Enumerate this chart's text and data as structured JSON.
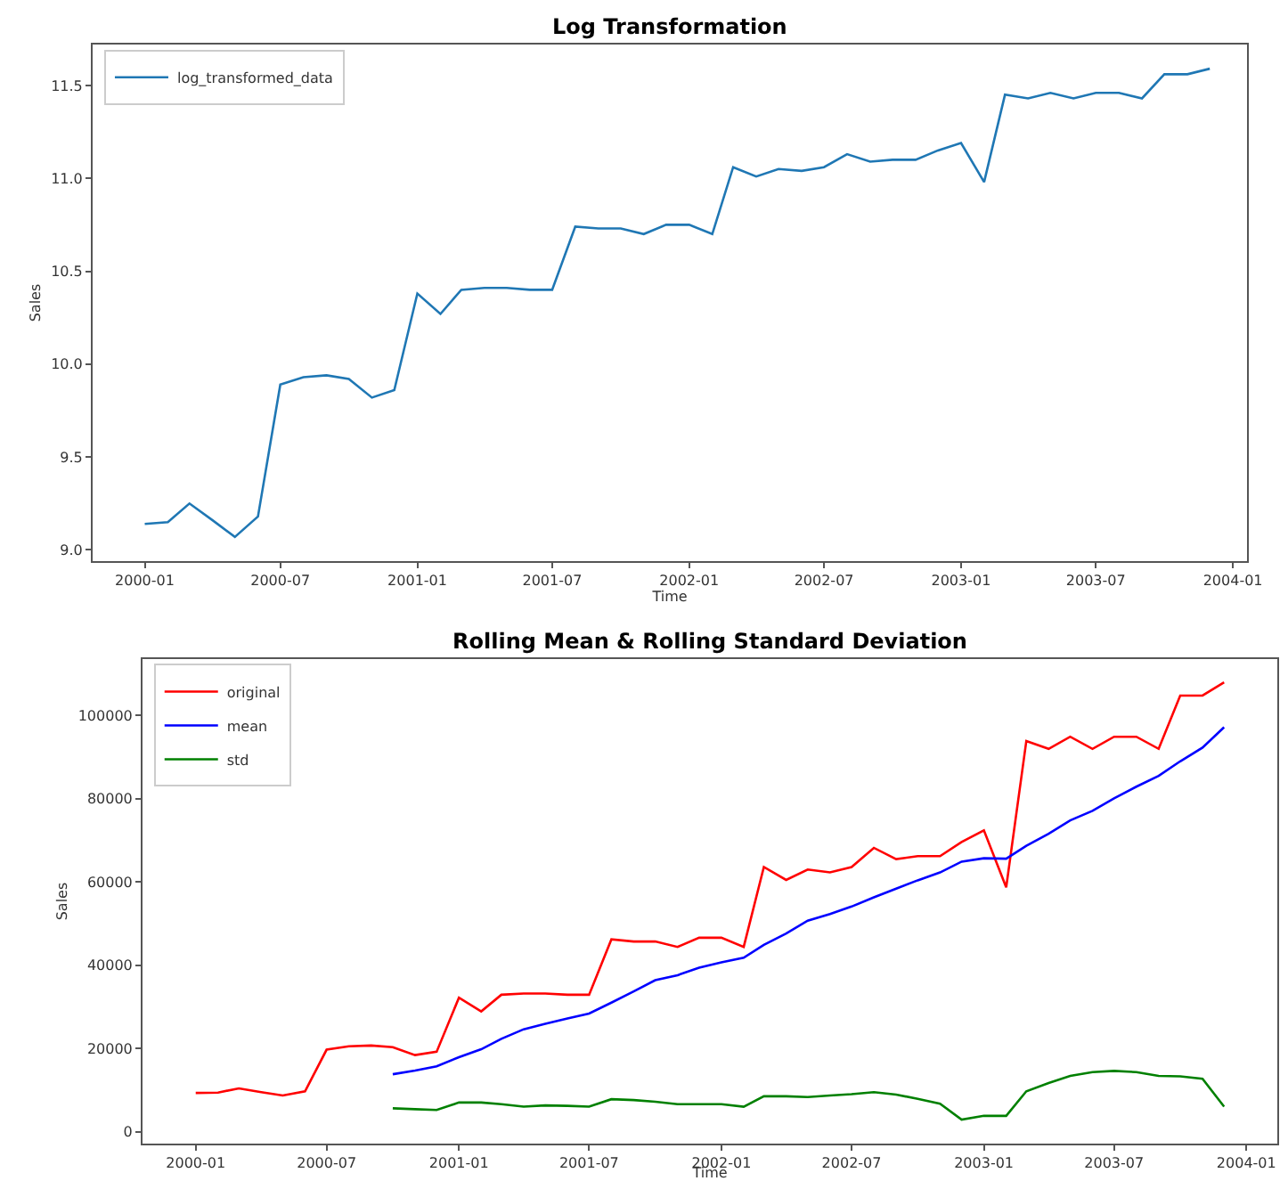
{
  "chart_data": [
    {
      "type": "line",
      "title": "Log Transformation",
      "xlabel": "Time",
      "ylabel": "Sales",
      "x": [
        "2000-01",
        "2000-02",
        "2000-03",
        "2000-04",
        "2000-05",
        "2000-06",
        "2000-07",
        "2000-08",
        "2000-09",
        "2000-10",
        "2000-11",
        "2000-12",
        "2001-01",
        "2001-02",
        "2001-03",
        "2001-04",
        "2001-05",
        "2001-06",
        "2001-07",
        "2001-08",
        "2001-09",
        "2001-10",
        "2001-11",
        "2001-12",
        "2002-01",
        "2002-02",
        "2002-03",
        "2002-04",
        "2002-05",
        "2002-06",
        "2002-07",
        "2002-08",
        "2002-09",
        "2002-10",
        "2002-11",
        "2002-12",
        "2003-01",
        "2003-02",
        "2003-03",
        "2003-04",
        "2003-05",
        "2003-06",
        "2003-07",
        "2003-08",
        "2003-09",
        "2003-10",
        "2003-11",
        "2003-12"
      ],
      "series": [
        {
          "name": "log_transformed_data",
          "color": "#1f77b4",
          "values": [
            9.14,
            9.15,
            9.25,
            9.16,
            9.07,
            9.18,
            9.89,
            9.93,
            9.94,
            9.92,
            9.82,
            9.86,
            10.38,
            10.27,
            10.4,
            10.41,
            10.41,
            10.4,
            10.4,
            10.74,
            10.73,
            10.73,
            10.7,
            10.75,
            10.75,
            10.7,
            11.06,
            11.01,
            11.05,
            11.04,
            11.06,
            11.13,
            11.09,
            11.1,
            11.1,
            11.15,
            11.19,
            10.98,
            11.45,
            11.43,
            11.46,
            11.43,
            11.46,
            11.46,
            11.43,
            11.56,
            11.56,
            11.59
          ]
        }
      ],
      "xlim": [
        "1999-10-23",
        "2004-01-20"
      ],
      "xticks": [
        "2000-01",
        "2000-07",
        "2001-01",
        "2001-07",
        "2002-01",
        "2002-07",
        "2003-01",
        "2003-07",
        "2004-01"
      ],
      "ylim": [
        8.94,
        11.72
      ],
      "yticks": [
        {
          "value": 9,
          "label": "9.0"
        },
        9.5,
        {
          "value": 10,
          "label": "10.0"
        },
        10.5,
        {
          "value": 11,
          "label": "11.0"
        },
        11.5
      ],
      "legend": "top left",
      "marker": "none",
      "line_style": "solid"
    },
    {
      "type": "line",
      "title": "Rolling Mean & Rolling Standard Deviation",
      "xlabel": "Time",
      "ylabel": "Sales",
      "x": [
        "2000-01",
        "2000-02",
        "2000-03",
        "2000-04",
        "2000-05",
        "2000-06",
        "2000-07",
        "2000-08",
        "2000-09",
        "2000-10",
        "2000-11",
        "2000-12",
        "2001-01",
        "2001-02",
        "2001-03",
        "2001-04",
        "2001-05",
        "2001-06",
        "2001-07",
        "2001-08",
        "2001-09",
        "2001-10",
        "2001-11",
        "2001-12",
        "2002-01",
        "2002-02",
        "2002-03",
        "2002-04",
        "2002-05",
        "2002-06",
        "2002-07",
        "2002-08",
        "2002-09",
        "2002-10",
        "2002-11",
        "2002-12",
        "2003-01",
        "2003-02",
        "2003-03",
        "2003-04",
        "2003-05",
        "2003-06",
        "2003-07",
        "2003-08",
        "2003-09",
        "2003-10",
        "2003-11",
        "2003-12"
      ],
      "series": [
        {
          "name": "original",
          "color": "#ff0000",
          "values": [
            9300,
            9400,
            10400,
            9500,
            8700,
            9700,
            19700,
            20500,
            20700,
            20300,
            18400,
            19200,
            32200,
            28900,
            32900,
            33200,
            33200,
            32900,
            32900,
            46200,
            45700,
            45700,
            44400,
            46600,
            46600,
            44400,
            63600,
            60500,
            63000,
            62300,
            63600,
            68200,
            65500,
            66200,
            66200,
            69600,
            72400,
            58700,
            93900,
            92000,
            94900,
            92000,
            94900,
            94900,
            92000,
            104800,
            104800,
            108000
          ]
        },
        {
          "name": "mean",
          "color": "#0000ff",
          "values": [
            null,
            null,
            null,
            null,
            null,
            null,
            null,
            null,
            null,
            13800,
            14700,
            15700,
            17900,
            19800,
            22300,
            24600,
            25900,
            27200,
            28400,
            31000,
            33700,
            36400,
            37600,
            39400,
            40700,
            41800,
            44900,
            47600,
            50700,
            52300,
            54100,
            56300,
            58400,
            60400,
            62300,
            64900,
            65700,
            65600,
            68700,
            71600,
            74800,
            77100,
            80100,
            82900,
            85500,
            89000,
            92300,
            97200
          ]
        },
        {
          "name": "std",
          "color": "#008000",
          "values": [
            null,
            null,
            null,
            null,
            null,
            null,
            null,
            null,
            null,
            5600,
            5400,
            5200,
            7000,
            7000,
            6600,
            6000,
            6300,
            6200,
            6000,
            7800,
            7600,
            7200,
            6600,
            6600,
            6600,
            6000,
            8500,
            8500,
            8300,
            8700,
            9000,
            9500,
            8900,
            7900,
            6700,
            2900,
            3800,
            3800,
            9700,
            11700,
            13400,
            14300,
            14600,
            14300,
            13400,
            13300,
            12700,
            6000
          ]
        }
      ],
      "xlim": [
        "1999-10-19",
        "2004-02-13"
      ],
      "xticks": [
        "2000-01",
        "2000-07",
        "2001-01",
        "2001-07",
        "2002-01",
        "2002-07",
        "2003-01",
        "2003-07",
        "2004-01"
      ],
      "ylim": [
        -2870,
        113570
      ],
      "yticks": [
        0,
        20000,
        40000,
        60000,
        80000,
        100000
      ],
      "legend": "top left",
      "marker": "none",
      "line_style": "solid"
    }
  ]
}
